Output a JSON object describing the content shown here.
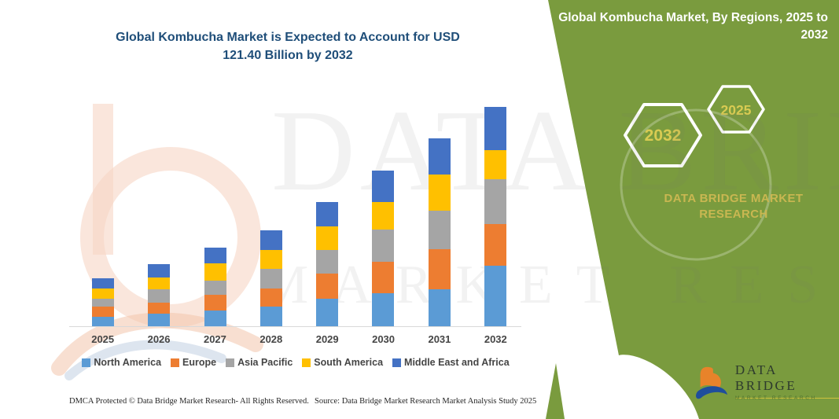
{
  "theme": {
    "panel_green": "#7A9B3E",
    "title_blue": "#1F4E79",
    "hexagon_gold": "#D9CB52",
    "brand_gold": "#C9B751"
  },
  "header": {
    "chart_title": "Global Kombucha Market is Expected to Account for USD 121.40 Billion by 2032",
    "panel_title": "Global Kombucha Market, By Regions, 2025 to 2032"
  },
  "side_panel": {
    "hexagon_back_year": "2032",
    "hexagon_front_year": "2025",
    "brand_name": "DATA BRIDGE MARKET RESEARCH"
  },
  "watermark": {
    "line1": "DATA BRIDGE",
    "line2": "MARKET RESEARCH"
  },
  "chart_data": {
    "type": "bar",
    "stacked": true,
    "title": "Global Kombucha Market is Expected to Account for USD 121.40 Billion by 2032",
    "unit": "USD Billion",
    "categories": [
      "2025",
      "2026",
      "2027",
      "2028",
      "2029",
      "2030",
      "2031",
      "2032"
    ],
    "series": [
      {
        "name": "North America",
        "color": "#5B9BD5",
        "values": [
          5.1,
          6.8,
          8.7,
          10.9,
          15.2,
          18.1,
          20.3,
          33.4
        ]
      },
      {
        "name": "Europe",
        "color": "#ED7D31",
        "values": [
          5.8,
          6.5,
          8.7,
          10.1,
          13.8,
          17.4,
          22.5,
          23.2
        ]
      },
      {
        "name": "Asia Pacific",
        "color": "#A5A5A5",
        "values": [
          4.4,
          7.3,
          8.0,
          10.9,
          13.1,
          18.1,
          21.1,
          24.7
        ]
      },
      {
        "name": "South America",
        "color": "#FFC000",
        "values": [
          5.8,
          6.5,
          9.4,
          10.1,
          13.1,
          15.2,
          20.0,
          16.0
        ]
      },
      {
        "name": "Middle East and Africa",
        "color": "#4472C4",
        "values": [
          5.4,
          7.3,
          8.7,
          10.9,
          13.4,
          17.4,
          20.1,
          24.1
        ]
      }
    ],
    "totals": [
      26.5,
      34.4,
      43.5,
      52.9,
      68.6,
      86.2,
      104.0,
      121.4
    ],
    "ylim": [
      0,
      130
    ],
    "grid": false,
    "y_axis_shown": false,
    "legend_position": "bottom"
  },
  "footer": {
    "left": "DMCA Protected © Data Bridge Market Research-  All Rights Reserved.",
    "source": "Source: Data Bridge Market Research  Market Analysis Study 2025"
  },
  "logo": {
    "name": "DATA BRIDGE",
    "sub": "MARKET RESEARCH"
  }
}
